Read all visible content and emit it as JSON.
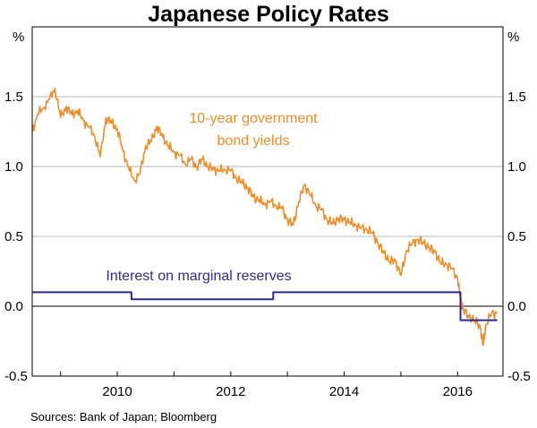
{
  "chart_data": {
    "type": "line",
    "title": "Japanese Policy Rates",
    "unit_left": "%",
    "unit_right": "%",
    "ylim": [
      -0.5,
      2.0
    ],
    "yticks": [
      -0.5,
      0.0,
      0.5,
      1.0,
      1.5
    ],
    "ytick_labels": [
      "-0.5",
      "0.0",
      "0.5",
      "1.0",
      "1.5"
    ],
    "xlim": [
      2008.5,
      2016.8
    ],
    "xtick_labels": [
      "2010",
      "2012",
      "2014",
      "2016"
    ],
    "xtick_positions": [
      2010,
      2012,
      2014,
      2016
    ],
    "series": [
      {
        "name": "10-year government bond yields",
        "label_lines": [
          "10-year government",
          "bond yields"
        ],
        "color": "#f28c28",
        "x": [
          2008.5,
          2008.6,
          2008.7,
          2008.8,
          2008.9,
          2009.0,
          2009.1,
          2009.2,
          2009.3,
          2009.4,
          2009.5,
          2009.6,
          2009.7,
          2009.8,
          2009.9,
          2010.0,
          2010.1,
          2010.2,
          2010.3,
          2010.4,
          2010.5,
          2010.6,
          2010.7,
          2010.8,
          2010.9,
          2011.0,
          2011.1,
          2011.2,
          2011.3,
          2011.4,
          2011.5,
          2011.6,
          2011.7,
          2011.8,
          2011.9,
          2012.0,
          2012.1,
          2012.2,
          2012.3,
          2012.4,
          2012.5,
          2012.6,
          2012.7,
          2012.8,
          2012.9,
          2013.0,
          2013.1,
          2013.2,
          2013.3,
          2013.4,
          2013.5,
          2013.6,
          2013.7,
          2013.8,
          2013.9,
          2014.0,
          2014.1,
          2014.2,
          2014.3,
          2014.4,
          2014.5,
          2014.6,
          2014.7,
          2014.8,
          2014.9,
          2015.0,
          2015.1,
          2015.2,
          2015.3,
          2015.4,
          2015.5,
          2015.6,
          2015.7,
          2015.8,
          2015.9,
          2016.0,
          2016.05,
          2016.1,
          2016.2,
          2016.3,
          2016.4,
          2016.45,
          2016.5,
          2016.6,
          2016.7
        ],
        "values": [
          1.25,
          1.38,
          1.42,
          1.48,
          1.56,
          1.35,
          1.43,
          1.37,
          1.4,
          1.33,
          1.28,
          1.22,
          1.07,
          1.35,
          1.31,
          1.27,
          1.11,
          0.99,
          0.9,
          0.95,
          1.15,
          1.18,
          1.29,
          1.21,
          1.15,
          1.1,
          1.08,
          1.02,
          1.05,
          1.0,
          1.05,
          1.0,
          0.98,
          0.97,
          0.98,
          0.97,
          0.92,
          0.88,
          0.85,
          0.78,
          0.76,
          0.73,
          0.75,
          0.72,
          0.7,
          0.62,
          0.58,
          0.75,
          0.87,
          0.8,
          0.72,
          0.69,
          0.62,
          0.59,
          0.63,
          0.62,
          0.6,
          0.58,
          0.56,
          0.55,
          0.52,
          0.45,
          0.38,
          0.32,
          0.33,
          0.22,
          0.4,
          0.45,
          0.48,
          0.45,
          0.42,
          0.39,
          0.31,
          0.3,
          0.27,
          0.2,
          0.05,
          -0.02,
          -0.08,
          -0.1,
          -0.15,
          -0.28,
          -0.13,
          -0.05,
          -0.05
        ]
      },
      {
        "name": "Interest on marginal reserves",
        "label_lines": [
          "Interest on marginal reserves"
        ],
        "color": "#2e2a8f",
        "step": true,
        "x": [
          2008.5,
          2010.25,
          2010.25,
          2012.75,
          2012.75,
          2016.05,
          2016.05,
          2016.7
        ],
        "values": [
          0.1,
          0.1,
          0.05,
          0.05,
          0.1,
          0.1,
          -0.1,
          -0.1
        ]
      }
    ]
  },
  "source": "Sources:   Bank of Japan; Bloomberg"
}
